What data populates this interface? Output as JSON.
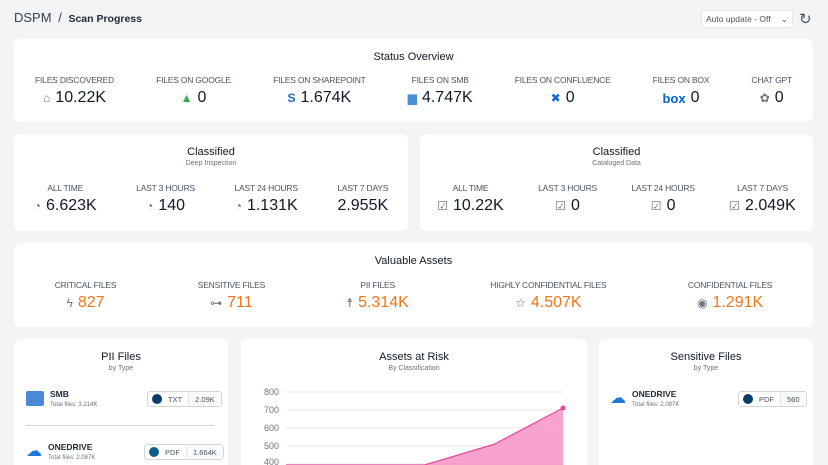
{
  "header": {
    "app": "DSPM",
    "separator": "/",
    "page": "Scan Progress",
    "auto_update": "Auto update - Off"
  },
  "status_overview": {
    "title": "Status Overview",
    "items": [
      {
        "label": "FILES DISCOVERED",
        "value": "10.22K",
        "icon": "home-icon"
      },
      {
        "label": "FILES ON GOOGLE",
        "value": "0",
        "icon": "google-drive-icon"
      },
      {
        "label": "FILES ON SHAREPOINT",
        "value": "1.674K",
        "icon": "sharepoint-icon"
      },
      {
        "label": "FILES ON SMB",
        "value": "4.747K",
        "icon": "folder-icon"
      },
      {
        "label": "FILES ON CONFLUENCE",
        "value": "0",
        "icon": "confluence-icon"
      },
      {
        "label": "FILES ON BOX",
        "value": "0",
        "icon": "box-icon"
      },
      {
        "label": "CHAT GPT",
        "value": "0",
        "icon": "openai-icon"
      }
    ]
  },
  "classified_deep": {
    "title": "Classified",
    "subtitle": "Deep Inspection",
    "items": [
      {
        "label": "ALL TIME",
        "value": "6.623K"
      },
      {
        "label": "LAST 3 HOURS",
        "value": "140"
      },
      {
        "label": "LAST 24 HOURS",
        "value": "1.131K"
      },
      {
        "label": "LAST 7 DAYS",
        "value": "2.955K"
      }
    ]
  },
  "classified_cataloged": {
    "title": "Classified",
    "subtitle": "Cataloged Data",
    "items": [
      {
        "label": "ALL TIME",
        "value": "10.22K"
      },
      {
        "label": "LAST 3 HOURS",
        "value": "0"
      },
      {
        "label": "LAST 24 HOURS",
        "value": "0"
      },
      {
        "label": "LAST 7 DAYS",
        "value": "2.049K"
      }
    ]
  },
  "valuable_assets": {
    "title": "Valuable Assets",
    "accent": "#f97316",
    "items": [
      {
        "label": "CRITICAL FILES",
        "value": "827",
        "icon": "lightning-icon"
      },
      {
        "label": "SENSITIVE FILES",
        "value": "711",
        "icon": "key-icon"
      },
      {
        "label": "PII FILES",
        "value": "5.314K",
        "icon": "person-icon"
      },
      {
        "label": "HIGHLY CONFIDENTIAL FILES",
        "value": "4.507K",
        "icon": "star-icon"
      },
      {
        "label": "CONFIDENTIAL FILES",
        "value": "1.291K",
        "icon": "target-icon"
      }
    ]
  },
  "pii_files": {
    "title": "PII Files",
    "subtitle": "by Type",
    "items": [
      {
        "name": "SMB",
        "total": "Total files: 3.214K",
        "type": "TXT",
        "count": "2.09K",
        "dot": "#0b3d6b"
      },
      {
        "name": "ONEDRIVE",
        "total": "Total files: 2.087K",
        "type": "PDF",
        "count": "1.664K",
        "dot": "#0e5f8a"
      }
    ]
  },
  "sensitive_files": {
    "title": "Sensitive Files",
    "subtitle": "by Type",
    "items": [
      {
        "name": "ONEDRIVE",
        "total": "Total files: 2.087K",
        "type": "PDF",
        "count": "560",
        "dot": "#0b3d6b"
      }
    ]
  },
  "chart_data": {
    "type": "area",
    "title": "Assets at Risk",
    "subtitle": "By Classification",
    "y_ticks": [
      "800",
      "700",
      "600",
      "500",
      "400"
    ],
    "ylim_visible": [
      400,
      800
    ],
    "grid": true,
    "color": "#f472b6",
    "series": [
      {
        "x": [
          0,
          1,
          2,
          3,
          4
        ],
        "values": [
          0,
          0,
          311,
          509,
          711
        ]
      }
    ]
  }
}
